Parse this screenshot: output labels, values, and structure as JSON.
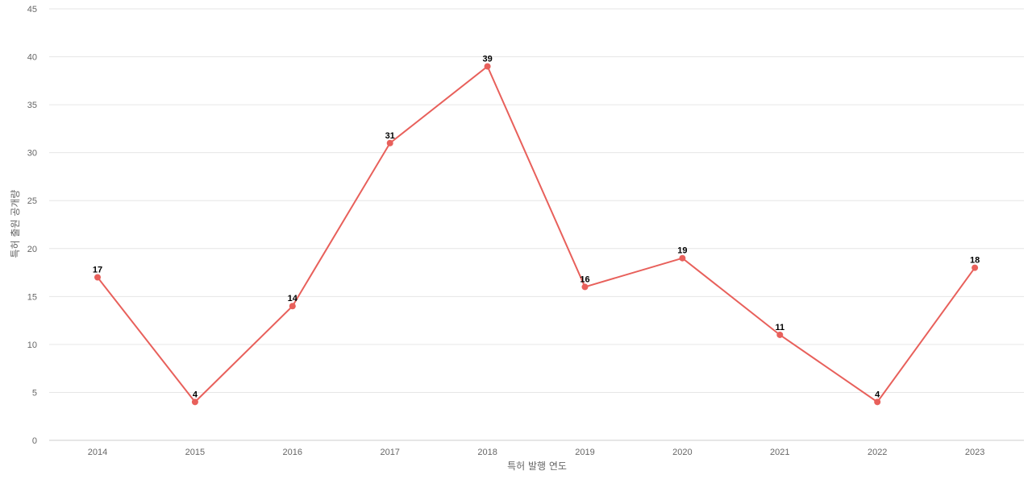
{
  "chart_data": {
    "type": "line",
    "categories": [
      "2014",
      "2015",
      "2016",
      "2017",
      "2018",
      "2019",
      "2020",
      "2021",
      "2022",
      "2023"
    ],
    "series": [
      {
        "values": [
          17,
          4,
          14,
          31,
          39,
          16,
          19,
          11,
          4,
          18
        ]
      }
    ],
    "xlabel": "특허 발행 연도",
    "ylabel": "특허 출원 공개량",
    "ylim": [
      0,
      45
    ],
    "yticks": [
      0,
      5,
      10,
      15,
      20,
      25,
      30,
      35,
      40,
      45
    ],
    "grid": true,
    "legend": "none",
    "data_labels": true,
    "line_color": "#e8605b"
  }
}
